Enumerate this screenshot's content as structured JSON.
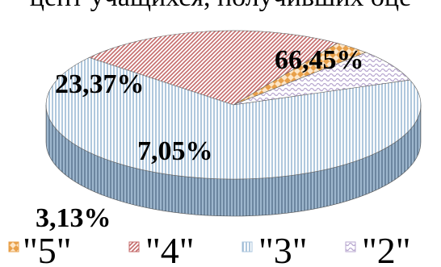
{
  "title_fragment": "цент учащихся, получивших оце",
  "chart_data": {
    "type": "pie",
    "categories": [
      "\"5\"",
      "\"4\"",
      "\"3\"",
      "\"2\""
    ],
    "values": [
      3.13,
      23.37,
      66.45,
      7.05
    ],
    "labels": [
      "3,13%",
      "23,37%",
      "66,45%",
      "7,05%"
    ],
    "colors": {
      "\"5\"": "#e8a04a",
      "\"4\"": "#c46a6a",
      "\"3\"": "#a9c4dc",
      "\"2\"": "#b7a6cf"
    },
    "patterns": {
      "\"5\"": "checker",
      "\"4\"": "diagonal-hatch",
      "\"3\"": "vertical-lines",
      "\"2\"": "wave"
    },
    "legend_placement": "bottom",
    "style": "3d"
  }
}
